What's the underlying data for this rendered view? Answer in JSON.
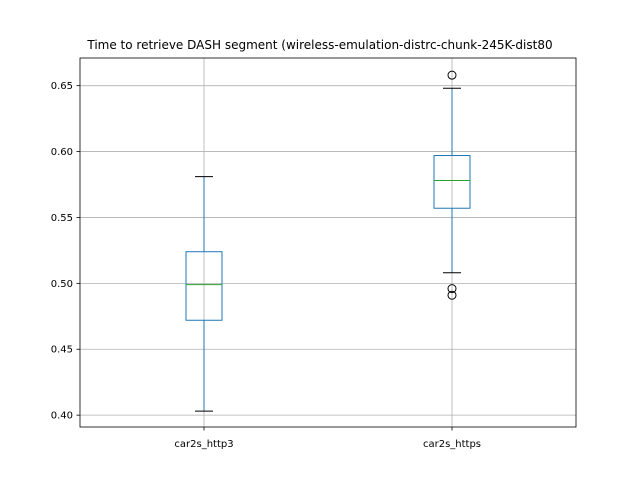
{
  "chart_data": {
    "type": "box",
    "title": "Time to retrieve DASH segment (wireless-emulation-distrc-chunk-245K-dist80",
    "xlabel": "",
    "ylabel": "",
    "ylim": [
      0.391,
      0.671
    ],
    "yticks": [
      0.4,
      0.45,
      0.5,
      0.55,
      0.6,
      0.65
    ],
    "ytick_labels": [
      "0.40",
      "0.45",
      "0.50",
      "0.55",
      "0.60",
      "0.65"
    ],
    "grid": true,
    "categories": [
      "car2s_http3",
      "car2s_https"
    ],
    "boxes": [
      {
        "label": "car2s_http3",
        "whisker_low": 0.403,
        "q1": 0.472,
        "median": 0.499,
        "q3": 0.524,
        "whisker_high": 0.581,
        "outliers": []
      },
      {
        "label": "car2s_https",
        "whisker_low": 0.508,
        "q1": 0.557,
        "median": 0.578,
        "q3": 0.597,
        "whisker_high": 0.648,
        "outliers": [
          0.658,
          0.496,
          0.491
        ]
      }
    ],
    "colors": {
      "box": "#1f77b4",
      "median": "#2ca02c",
      "cap": "#000000",
      "grid": "#b0b0b0",
      "axis": "#000000"
    }
  }
}
